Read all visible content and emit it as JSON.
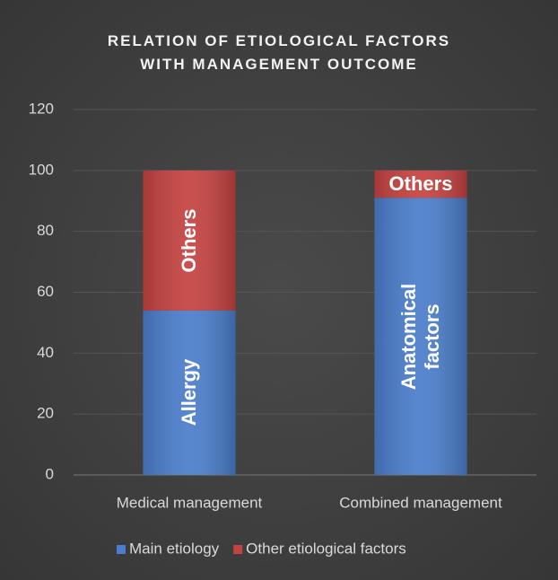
{
  "chart_data": {
    "type": "stacked_bar",
    "title": "RELATION OF ETIOLOGICAL FACTORS WITH MANAGEMENT OUTCOME",
    "categories": [
      "Medical management",
      "Combined management"
    ],
    "series": [
      {
        "name": "Main etiology",
        "color": "#4a7dcb",
        "values": [
          54,
          91
        ],
        "segment_labels": [
          "Allergy",
          "Anatomical factors"
        ]
      },
      {
        "name": "Other etiological factors",
        "color": "#c44240",
        "values": [
          46,
          9
        ],
        "segment_labels": [
          "Others",
          "Others"
        ]
      }
    ],
    "ylim": [
      0,
      120
    ],
    "yticks": [
      0,
      20,
      40,
      60,
      80,
      100,
      120
    ],
    "grid": true,
    "legend": "bottom"
  }
}
